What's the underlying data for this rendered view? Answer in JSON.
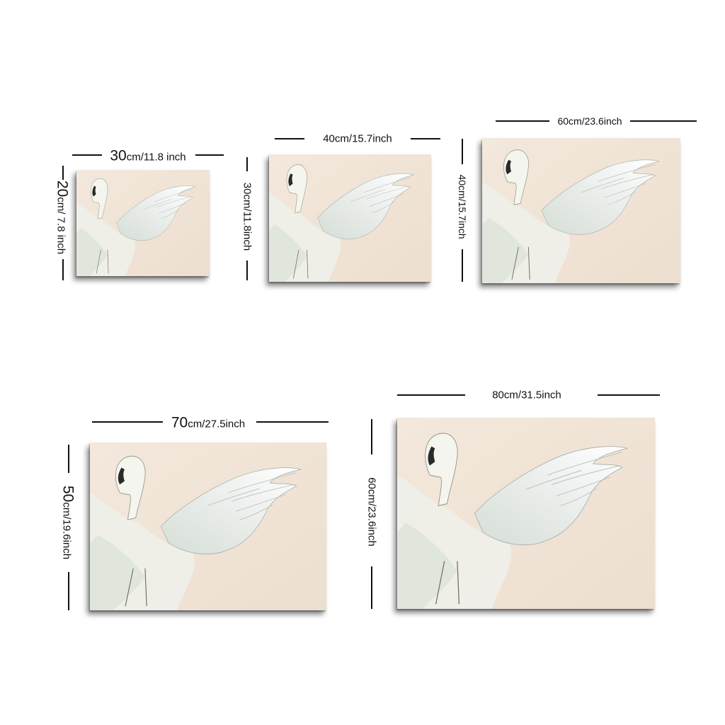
{
  "sizes": [
    {
      "width": {
        "num": "30",
        "rest": "cm/11.8 inch"
      },
      "height": {
        "num": "20",
        "rest": "cm/ 7.8 inch"
      }
    },
    {
      "width": {
        "num": "",
        "rest": "40cm/15.7inch"
      },
      "height": {
        "num": "",
        "rest": "30cm/11.8inch"
      }
    },
    {
      "width": {
        "num": "",
        "rest": "60cm/23.6inch"
      },
      "height": {
        "num": "",
        "rest": "40cm/15.7inch"
      }
    },
    {
      "width": {
        "num": "70",
        "rest": "cm/27.5inch"
      },
      "height": {
        "num": "50",
        "rest": "cm/19.6inch"
      }
    },
    {
      "width": {
        "num": "",
        "rest": "80cm/31.5inch"
      },
      "height": {
        "num": "",
        "rest": "60cm/23.6inch"
      }
    }
  ],
  "artwork": {
    "subject": "swan-painting"
  },
  "colors": {
    "canvas": "#f1e6d9",
    "line": "#111111"
  }
}
